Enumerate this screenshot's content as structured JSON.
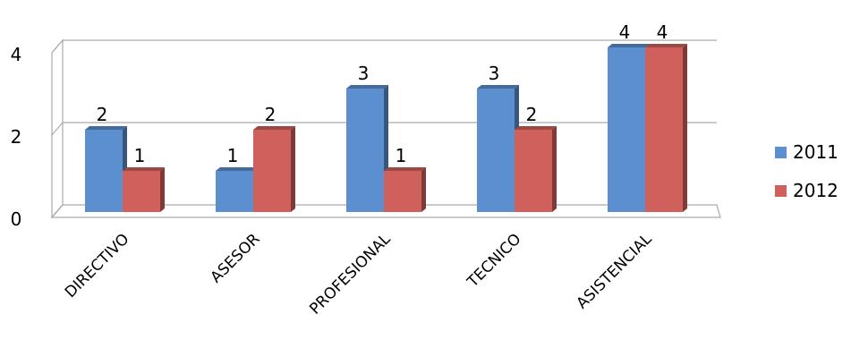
{
  "chart_data": {
    "type": "bar",
    "categories": [
      "DIRECTIVO",
      "ASESOR",
      "PROFESIONAL",
      "TECNICO",
      "ASISTENCIAL"
    ],
    "series": [
      {
        "name": "2011",
        "values": [
          2,
          1,
          3,
          3,
          4
        ],
        "color": "#5b8fcf"
      },
      {
        "name": "2012",
        "values": [
          1,
          2,
          1,
          2,
          4
        ],
        "color": "#d0605c"
      }
    ],
    "y_ticks": [
      "0",
      "2",
      "4"
    ],
    "ylim": [
      0,
      4
    ],
    "grid": true,
    "legend_position": "right",
    "three_d": true
  }
}
